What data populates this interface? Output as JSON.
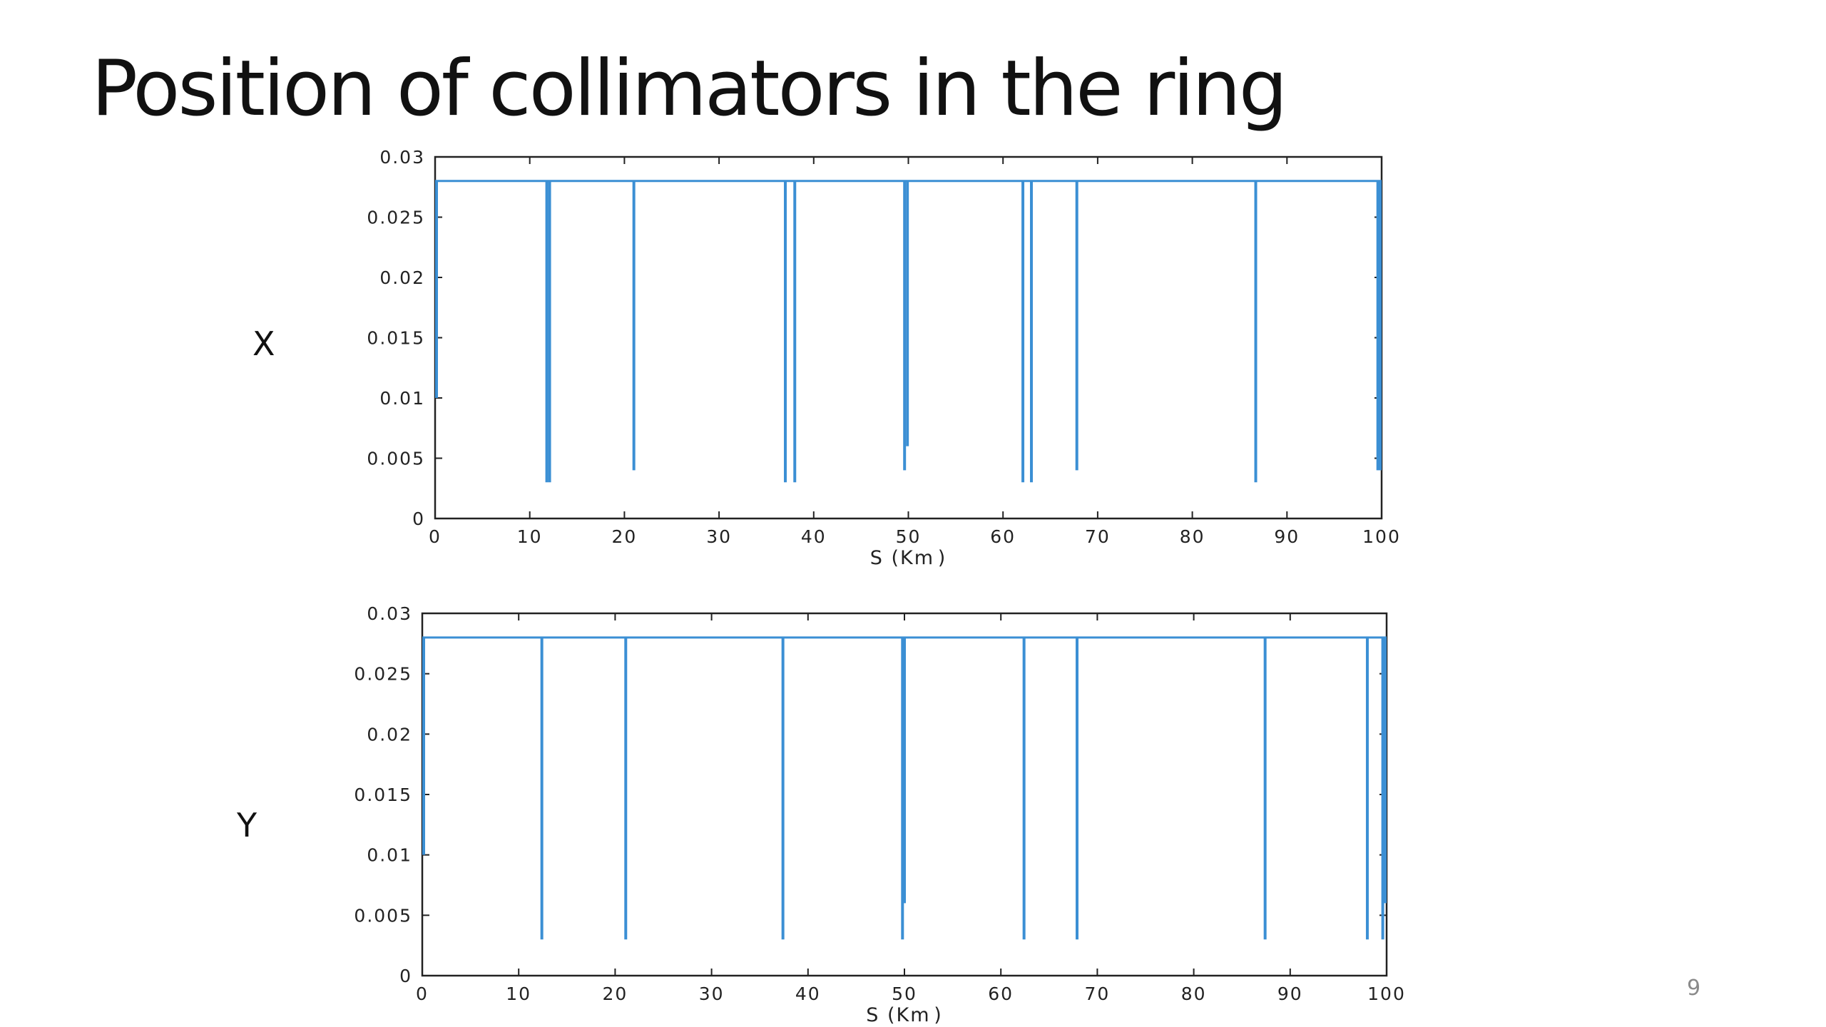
{
  "slide": {
    "title": "Position of collimators in the ring",
    "page_number": "9",
    "plot_labels": [
      "X",
      "Y"
    ]
  },
  "chart_data": [
    {
      "type": "line",
      "title": "",
      "xlabel": "S (Km )",
      "ylabel": "",
      "xlim": [
        0,
        100
      ],
      "ylim": [
        0,
        0.03
      ],
      "xticks": [
        0,
        10,
        20,
        30,
        40,
        50,
        60,
        70,
        80,
        90,
        100
      ],
      "yticks": [
        0,
        0.005,
        0.01,
        0.015,
        0.02,
        0.025,
        0.03
      ],
      "xtick_labels": [
        "0",
        "10",
        "20",
        "30",
        "40",
        "50",
        "60",
        "70",
        "80",
        "90",
        "100"
      ],
      "ytick_labels": [
        "0",
        "0.005",
        "0.01",
        "0.015",
        "0.02",
        "0.025",
        "0.03"
      ],
      "grid": false,
      "line_color": "#3b8fd4",
      "baseline": 0.028,
      "dips": [
        {
          "s": 0.0,
          "value": 0.01
        },
        {
          "s": 11.8,
          "value": 0.003
        },
        {
          "s": 12.1,
          "value": 0.003
        },
        {
          "s": 21.0,
          "value": 0.004
        },
        {
          "s": 37.0,
          "value": 0.003
        },
        {
          "s": 38.0,
          "value": 0.003
        },
        {
          "s": 49.6,
          "value": 0.004
        },
        {
          "s": 49.9,
          "value": 0.006
        },
        {
          "s": 62.1,
          "value": 0.003
        },
        {
          "s": 63.0,
          "value": 0.003
        },
        {
          "s": 67.8,
          "value": 0.004
        },
        {
          "s": 86.7,
          "value": 0.003
        },
        {
          "s": 99.6,
          "value": 0.004
        },
        {
          "s": 99.9,
          "value": 0.004
        }
      ]
    },
    {
      "type": "line",
      "title": "",
      "xlabel": "S (Km )",
      "ylabel": "",
      "xlim": [
        0,
        100
      ],
      "ylim": [
        0,
        0.03
      ],
      "xticks": [
        0,
        10,
        20,
        30,
        40,
        50,
        60,
        70,
        80,
        90,
        100
      ],
      "yticks": [
        0,
        0.005,
        0.01,
        0.015,
        0.02,
        0.025,
        0.03
      ],
      "xtick_labels": [
        "0",
        "10",
        "20",
        "30",
        "40",
        "50",
        "60",
        "70",
        "80",
        "90",
        "100"
      ],
      "ytick_labels": [
        "0",
        "0.005",
        "0.01",
        "0.015",
        "0.02",
        "0.025",
        "0.03"
      ],
      "grid": false,
      "line_color": "#3b8fd4",
      "baseline": 0.028,
      "dips": [
        {
          "s": 0.0,
          "value": 0.01
        },
        {
          "s": 12.4,
          "value": 0.003
        },
        {
          "s": 21.1,
          "value": 0.003
        },
        {
          "s": 37.4,
          "value": 0.003
        },
        {
          "s": 49.8,
          "value": 0.003
        },
        {
          "s": 50.0,
          "value": 0.006
        },
        {
          "s": 62.4,
          "value": 0.003
        },
        {
          "s": 67.9,
          "value": 0.003
        },
        {
          "s": 87.4,
          "value": 0.003
        },
        {
          "s": 98.0,
          "value": 0.003
        },
        {
          "s": 99.6,
          "value": 0.003
        },
        {
          "s": 99.9,
          "value": 0.006
        }
      ]
    }
  ]
}
